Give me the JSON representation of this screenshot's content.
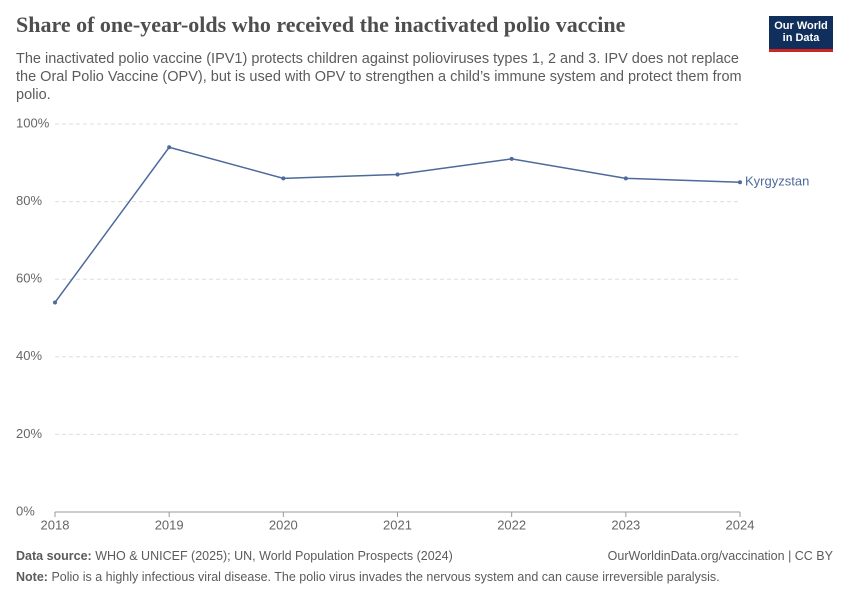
{
  "chart_data": {
    "type": "line",
    "title": "Share of one-year-olds who received the inactivated polio vaccine",
    "subtitle": "The inactivated polio vaccine (IPV1) protects children against polioviruses types 1, 2 and 3. IPV does not replace the Oral Polio Vaccine (OPV), but is used with OPV to strengthen a child’s immune system and protect them from polio.",
    "logo": [
      "Our World",
      "in Data"
    ],
    "x": [
      2018,
      2019,
      2020,
      2021,
      2022,
      2023,
      2024
    ],
    "series": [
      {
        "name": "Kyrgyzstan",
        "color": "#4c6a9c",
        "values": [
          54,
          94,
          86,
          87,
          91,
          86,
          85
        ]
      }
    ],
    "xlim": [
      2018,
      2024
    ],
    "xticks": [
      2018,
      2019,
      2020,
      2021,
      2022,
      2023,
      2024
    ],
    "ylim": [
      0,
      100
    ],
    "yticks": [
      {
        "value": 0,
        "label": "0%"
      },
      {
        "value": 20,
        "label": "20%"
      },
      {
        "value": 40,
        "label": "40%"
      },
      {
        "value": 60,
        "label": "60%"
      },
      {
        "value": 80,
        "label": "80%"
      },
      {
        "value": 100,
        "label": "100%"
      }
    ],
    "grid": true,
    "source_label": "Data source:",
    "source": "WHO & UNICEF (2025); UN, World Population Prospects (2024)",
    "url": "OurWorldinData.org/vaccination | CC BY",
    "note_label": "Note:",
    "note": "Polio is a highly infectious viral disease. The polio virus invades the nervous system and can cause irreversible paralysis."
  }
}
